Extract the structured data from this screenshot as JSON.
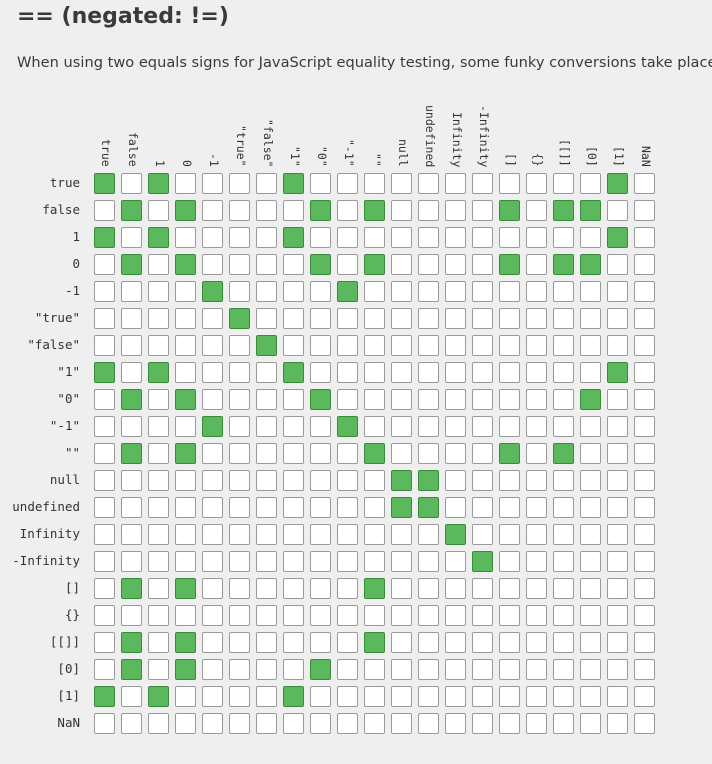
{
  "heading": "== (negated: !=)",
  "description": "When using two equals signs for JavaScript equality testing, some funky conversions take place.",
  "colors": {
    "equal_cell": "#5cb85c",
    "equal_border": "#3b8a3b",
    "empty_cell": "#ffffff",
    "cell_border": "#9a9a9a",
    "background": "#efefef"
  },
  "matrix": {
    "columns": [
      "true",
      "false",
      "1",
      "0",
      "-1",
      "\"true\"",
      "\"false\"",
      "\"1\"",
      "\"0\"",
      "\"-1\"",
      "\"\"",
      "null",
      "undefined",
      "Infinity",
      "-Infinity",
      "[]",
      "{}",
      "[[]]",
      "[0]",
      "[1]",
      "NaN"
    ],
    "rows": [
      "true",
      "false",
      "1",
      "0",
      "-1",
      "\"true\"",
      "\"false\"",
      "\"1\"",
      "\"0\"",
      "\"-1\"",
      "\"\"",
      "null",
      "undefined",
      "Infinity",
      "-Infinity",
      "[]",
      "{}",
      "[[]]",
      "[0]",
      "[1]",
      "NaN"
    ],
    "equal": [
      [
        1,
        0,
        1,
        0,
        0,
        0,
        0,
        1,
        0,
        0,
        0,
        0,
        0,
        0,
        0,
        0,
        0,
        0,
        0,
        1,
        0
      ],
      [
        0,
        1,
        0,
        1,
        0,
        0,
        0,
        0,
        1,
        0,
        1,
        0,
        0,
        0,
        0,
        1,
        0,
        1,
        1,
        0,
        0
      ],
      [
        1,
        0,
        1,
        0,
        0,
        0,
        0,
        1,
        0,
        0,
        0,
        0,
        0,
        0,
        0,
        0,
        0,
        0,
        0,
        1,
        0
      ],
      [
        0,
        1,
        0,
        1,
        0,
        0,
        0,
        0,
        1,
        0,
        1,
        0,
        0,
        0,
        0,
        1,
        0,
        1,
        1,
        0,
        0
      ],
      [
        0,
        0,
        0,
        0,
        1,
        0,
        0,
        0,
        0,
        1,
        0,
        0,
        0,
        0,
        0,
        0,
        0,
        0,
        0,
        0,
        0
      ],
      [
        0,
        0,
        0,
        0,
        0,
        1,
        0,
        0,
        0,
        0,
        0,
        0,
        0,
        0,
        0,
        0,
        0,
        0,
        0,
        0,
        0
      ],
      [
        0,
        0,
        0,
        0,
        0,
        0,
        1,
        0,
        0,
        0,
        0,
        0,
        0,
        0,
        0,
        0,
        0,
        0,
        0,
        0,
        0
      ],
      [
        1,
        0,
        1,
        0,
        0,
        0,
        0,
        1,
        0,
        0,
        0,
        0,
        0,
        0,
        0,
        0,
        0,
        0,
        0,
        1,
        0
      ],
      [
        0,
        1,
        0,
        1,
        0,
        0,
        0,
        0,
        1,
        0,
        0,
        0,
        0,
        0,
        0,
        0,
        0,
        0,
        1,
        0,
        0
      ],
      [
        0,
        0,
        0,
        0,
        1,
        0,
        0,
        0,
        0,
        1,
        0,
        0,
        0,
        0,
        0,
        0,
        0,
        0,
        0,
        0,
        0
      ],
      [
        0,
        1,
        0,
        1,
        0,
        0,
        0,
        0,
        0,
        0,
        1,
        0,
        0,
        0,
        0,
        1,
        0,
        1,
        0,
        0,
        0
      ],
      [
        0,
        0,
        0,
        0,
        0,
        0,
        0,
        0,
        0,
        0,
        0,
        1,
        1,
        0,
        0,
        0,
        0,
        0,
        0,
        0,
        0
      ],
      [
        0,
        0,
        0,
        0,
        0,
        0,
        0,
        0,
        0,
        0,
        0,
        1,
        1,
        0,
        0,
        0,
        0,
        0,
        0,
        0,
        0
      ],
      [
        0,
        0,
        0,
        0,
        0,
        0,
        0,
        0,
        0,
        0,
        0,
        0,
        0,
        1,
        0,
        0,
        0,
        0,
        0,
        0,
        0
      ],
      [
        0,
        0,
        0,
        0,
        0,
        0,
        0,
        0,
        0,
        0,
        0,
        0,
        0,
        0,
        1,
        0,
        0,
        0,
        0,
        0,
        0
      ],
      [
        0,
        1,
        0,
        1,
        0,
        0,
        0,
        0,
        0,
        0,
        1,
        0,
        0,
        0,
        0,
        0,
        0,
        0,
        0,
        0,
        0
      ],
      [
        0,
        0,
        0,
        0,
        0,
        0,
        0,
        0,
        0,
        0,
        0,
        0,
        0,
        0,
        0,
        0,
        0,
        0,
        0,
        0,
        0
      ],
      [
        0,
        1,
        0,
        1,
        0,
        0,
        0,
        0,
        0,
        0,
        1,
        0,
        0,
        0,
        0,
        0,
        0,
        0,
        0,
        0,
        0
      ],
      [
        0,
        1,
        0,
        1,
        0,
        0,
        0,
        0,
        1,
        0,
        0,
        0,
        0,
        0,
        0,
        0,
        0,
        0,
        0,
        0,
        0
      ],
      [
        1,
        0,
        1,
        0,
        0,
        0,
        0,
        1,
        0,
        0,
        0,
        0,
        0,
        0,
        0,
        0,
        0,
        0,
        0,
        0,
        0
      ],
      [
        0,
        0,
        0,
        0,
        0,
        0,
        0,
        0,
        0,
        0,
        0,
        0,
        0,
        0,
        0,
        0,
        0,
        0,
        0,
        0,
        0
      ]
    ]
  }
}
